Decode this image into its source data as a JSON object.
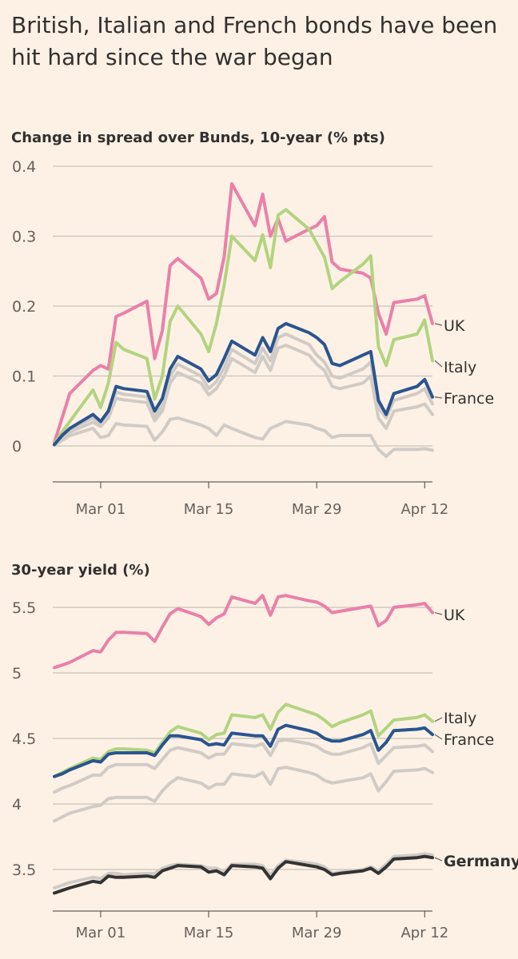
{
  "headline": "British, Italian and French bonds have been hit hard since the war began",
  "colors": {
    "background": "#fdf1e5",
    "gridline": "#c9c2bb",
    "UK": "#ea80a9",
    "Italy": "#b2d47f",
    "France": "#2a5590",
    "Germany": "#333333",
    "other": "#d1cbc6"
  },
  "chart_data": [
    {
      "type": "line",
      "title": "Change in spread over Bunds, 10-year (% pts)",
      "xlabel": "",
      "ylabel": "",
      "x_tick_labels": [
        "Mar 01",
        "Mar 15",
        "Mar 29",
        "Apr 12"
      ],
      "y_tick_labels": [
        "0.4",
        "0.3",
        "0.2",
        "0.1",
        "0"
      ],
      "ylim": [
        -0.02,
        0.4
      ],
      "grid": true,
      "x": [
        "2022-02-23",
        "2022-02-24",
        "2022-02-25",
        "2022-02-28",
        "2022-03-01",
        "2022-03-02",
        "2022-03-03",
        "2022-03-04",
        "2022-03-07",
        "2022-03-08",
        "2022-03-09",
        "2022-03-10",
        "2022-03-11",
        "2022-03-14",
        "2022-03-15",
        "2022-03-16",
        "2022-03-17",
        "2022-03-18",
        "2022-03-21",
        "2022-03-22",
        "2022-03-23",
        "2022-03-24",
        "2022-03-25",
        "2022-03-28",
        "2022-03-29",
        "2022-03-30",
        "2022-03-31",
        "2022-04-01",
        "2022-04-04",
        "2022-04-05",
        "2022-04-06",
        "2022-04-07",
        "2022-04-08",
        "2022-04-11",
        "2022-04-12",
        "2022-04-13"
      ],
      "series": [
        {
          "name": "UK",
          "color": "#ea80a9",
          "values": [
            0.005,
            0.04,
            0.075,
            0.108,
            0.115,
            0.11,
            0.185,
            0.19,
            0.207,
            0.125,
            0.165,
            0.258,
            0.268,
            0.24,
            0.21,
            0.218,
            0.27,
            0.375,
            0.315,
            0.36,
            0.3,
            0.325,
            0.293,
            0.31,
            0.315,
            0.328,
            0.263,
            0.253,
            0.247,
            0.24,
            0.19,
            0.16,
            0.205,
            0.21,
            0.215,
            0.175
          ]
        },
        {
          "name": "Italy",
          "color": "#b2d47f",
          "values": [
            0.003,
            0.02,
            0.035,
            0.08,
            0.055,
            0.09,
            0.148,
            0.138,
            0.125,
            0.067,
            0.1,
            0.178,
            0.2,
            0.16,
            0.135,
            0.175,
            0.23,
            0.3,
            0.265,
            0.302,
            0.255,
            0.33,
            0.338,
            0.31,
            0.29,
            0.27,
            0.225,
            0.235,
            0.26,
            0.272,
            0.142,
            0.115,
            0.152,
            0.16,
            0.18,
            0.122
          ]
        },
        {
          "name": "France",
          "color": "#2a5590",
          "values": [
            0.002,
            0.015,
            0.025,
            0.045,
            0.035,
            0.05,
            0.085,
            0.082,
            0.078,
            0.05,
            0.068,
            0.11,
            0.128,
            0.11,
            0.093,
            0.102,
            0.125,
            0.15,
            0.13,
            0.155,
            0.135,
            0.168,
            0.175,
            0.162,
            0.155,
            0.145,
            0.118,
            0.115,
            0.13,
            0.135,
            0.065,
            0.045,
            0.075,
            0.085,
            0.095,
            0.07
          ]
        },
        {
          "name": "",
          "color": "#d1cbc6",
          "values": [
            0.002,
            0.014,
            0.024,
            0.04,
            0.032,
            0.046,
            0.077,
            0.074,
            0.07,
            0.042,
            0.058,
            0.1,
            0.117,
            0.1,
            0.082,
            0.092,
            0.112,
            0.138,
            0.118,
            0.14,
            0.122,
            0.155,
            0.16,
            0.145,
            0.13,
            0.12,
            0.1,
            0.097,
            0.11,
            0.12,
            0.055,
            0.04,
            0.065,
            0.075,
            0.082,
            0.06
          ]
        },
        {
          "name": "",
          "color": "#d1cbc6",
          "values": [
            0.002,
            0.012,
            0.02,
            0.034,
            0.028,
            0.04,
            0.068,
            0.066,
            0.062,
            0.036,
            0.05,
            0.09,
            0.105,
            0.09,
            0.073,
            0.082,
            0.1,
            0.125,
            0.105,
            0.128,
            0.108,
            0.14,
            0.144,
            0.13,
            0.117,
            0.108,
            0.085,
            0.082,
            0.09,
            0.1,
            0.04,
            0.025,
            0.05,
            0.056,
            0.06,
            0.045
          ]
        },
        {
          "name": "",
          "color": "#d1cbc6",
          "values": [
            0.001,
            0.008,
            0.015,
            0.025,
            0.012,
            0.015,
            0.032,
            0.03,
            0.028,
            0.008,
            0.02,
            0.038,
            0.04,
            0.03,
            0.025,
            0.015,
            0.03,
            0.025,
            0.012,
            0.01,
            0.025,
            0.03,
            0.035,
            0.03,
            0.025,
            0.022,
            0.012,
            0.015,
            0.015,
            0.015,
            -0.005,
            -0.015,
            -0.005,
            -0.005,
            -0.004,
            -0.006
          ]
        }
      ]
    },
    {
      "type": "line",
      "title": "30-year yield (%)",
      "xlabel": "",
      "ylabel": "",
      "x_tick_labels": [
        "Mar 01",
        "Mar 15",
        "Mar 29",
        "Apr 12"
      ],
      "y_tick_labels": [
        "5.5",
        "5",
        "4.5",
        "4",
        "3.5"
      ],
      "ylim": [
        3.28,
        5.6
      ],
      "grid": true,
      "x": [
        "2022-02-23",
        "2022-02-24",
        "2022-02-25",
        "2022-02-28",
        "2022-03-01",
        "2022-03-02",
        "2022-03-03",
        "2022-03-04",
        "2022-03-07",
        "2022-03-08",
        "2022-03-09",
        "2022-03-10",
        "2022-03-11",
        "2022-03-14",
        "2022-03-15",
        "2022-03-16",
        "2022-03-17",
        "2022-03-18",
        "2022-03-21",
        "2022-03-22",
        "2022-03-23",
        "2022-03-24",
        "2022-03-25",
        "2022-03-28",
        "2022-03-29",
        "2022-03-30",
        "2022-03-31",
        "2022-04-01",
        "2022-04-04",
        "2022-04-05",
        "2022-04-06",
        "2022-04-07",
        "2022-04-08",
        "2022-04-11",
        "2022-04-12",
        "2022-04-13"
      ],
      "series": [
        {
          "name": "UK",
          "color": "#ea80a9",
          "values": [
            5.04,
            5.06,
            5.08,
            5.17,
            5.16,
            5.25,
            5.31,
            5.31,
            5.3,
            5.24,
            5.35,
            5.45,
            5.49,
            5.43,
            5.37,
            5.42,
            5.45,
            5.58,
            5.53,
            5.59,
            5.44,
            5.58,
            5.59,
            5.55,
            5.54,
            5.51,
            5.46,
            5.47,
            5.5,
            5.51,
            5.36,
            5.4,
            5.5,
            5.52,
            5.53,
            5.46
          ]
        },
        {
          "name": "Italy",
          "color": "#b2d47f",
          "values": [
            4.21,
            4.24,
            4.27,
            4.35,
            4.34,
            4.4,
            4.42,
            4.42,
            4.41,
            4.39,
            4.47,
            4.55,
            4.59,
            4.54,
            4.49,
            4.53,
            4.54,
            4.68,
            4.66,
            4.68,
            4.57,
            4.7,
            4.76,
            4.7,
            4.68,
            4.64,
            4.59,
            4.62,
            4.68,
            4.71,
            4.52,
            4.58,
            4.64,
            4.66,
            4.68,
            4.63
          ]
        },
        {
          "name": "France",
          "color": "#2a5590",
          "values": [
            4.21,
            4.23,
            4.26,
            4.33,
            4.32,
            4.38,
            4.39,
            4.39,
            4.39,
            4.37,
            4.45,
            4.52,
            4.52,
            4.49,
            4.45,
            4.46,
            4.45,
            4.54,
            4.52,
            4.52,
            4.44,
            4.57,
            4.6,
            4.56,
            4.54,
            4.5,
            4.48,
            4.48,
            4.53,
            4.56,
            4.41,
            4.47,
            4.56,
            4.57,
            4.58,
            4.53
          ]
        },
        {
          "name": "",
          "color": "#d1cbc6",
          "values": [
            4.09,
            4.12,
            4.14,
            4.22,
            4.22,
            4.28,
            4.3,
            4.3,
            4.3,
            4.27,
            4.34,
            4.41,
            4.43,
            4.39,
            4.35,
            4.38,
            4.38,
            4.46,
            4.44,
            4.46,
            4.37,
            4.48,
            4.49,
            4.46,
            4.44,
            4.4,
            4.38,
            4.38,
            4.43,
            4.46,
            4.31,
            4.37,
            4.43,
            4.44,
            4.45,
            4.4
          ]
        },
        {
          "name": "",
          "color": "#d1cbc6",
          "values": [
            3.87,
            3.9,
            3.93,
            3.98,
            3.99,
            4.04,
            4.05,
            4.05,
            4.05,
            4.02,
            4.1,
            4.16,
            4.2,
            4.16,
            4.12,
            4.15,
            4.15,
            4.23,
            4.21,
            4.24,
            4.15,
            4.27,
            4.28,
            4.24,
            4.22,
            4.18,
            4.16,
            4.17,
            4.2,
            4.23,
            4.1,
            4.17,
            4.25,
            4.26,
            4.27,
            4.24
          ]
        },
        {
          "name": "",
          "color": "#d1cbc6",
          "values": [
            3.36,
            3.38,
            3.4,
            3.44,
            3.43,
            3.47,
            3.47,
            3.46,
            3.47,
            3.47,
            3.51,
            3.53,
            3.54,
            3.53,
            3.51,
            3.51,
            3.48,
            3.54,
            3.54,
            3.53,
            3.46,
            3.53,
            3.57,
            3.55,
            3.54,
            3.52,
            3.47,
            3.48,
            3.5,
            3.52,
            3.49,
            3.54,
            3.6,
            3.61,
            3.62,
            3.61
          ]
        },
        {
          "name": "Germany",
          "color": "#333333",
          "values": [
            3.32,
            3.34,
            3.36,
            3.41,
            3.4,
            3.45,
            3.44,
            3.44,
            3.45,
            3.44,
            3.49,
            3.51,
            3.53,
            3.52,
            3.48,
            3.49,
            3.46,
            3.53,
            3.52,
            3.51,
            3.43,
            3.51,
            3.56,
            3.53,
            3.52,
            3.5,
            3.46,
            3.47,
            3.49,
            3.51,
            3.47,
            3.52,
            3.58,
            3.59,
            3.6,
            3.59
          ]
        }
      ]
    }
  ]
}
